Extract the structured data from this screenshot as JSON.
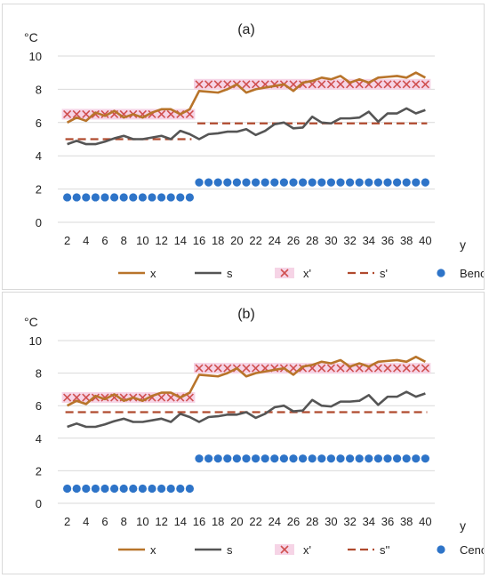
{
  "colors": {
    "x": "#b8742a",
    "s": "#555555",
    "x_prime": "#d05050",
    "x_prime_band": "#f6d4e6",
    "s_prime": "#b04a2e",
    "dots": "#2e74c8",
    "grid": "#d9d9d9",
    "text": "#222222"
  },
  "chart_data": [
    {
      "type": "line",
      "title": "(a)",
      "ylabel": "°C",
      "xlabel": "y",
      "ylim": [
        0,
        10
      ],
      "yticks": [
        0,
        2,
        4,
        6,
        8,
        10
      ],
      "xlim": [
        1,
        41
      ],
      "xticks": [
        2,
        4,
        6,
        8,
        10,
        12,
        14,
        16,
        18,
        20,
        22,
        24,
        26,
        28,
        30,
        32,
        34,
        36,
        38,
        40
      ],
      "grid": true,
      "legend_position": "bottom",
      "legend": [
        "x",
        "s",
        "x'",
        "s'",
        "Benova"
      ],
      "series": [
        {
          "name": "x",
          "x": [
            2,
            3,
            4,
            5,
            6,
            7,
            8,
            9,
            10,
            11,
            12,
            13,
            14,
            15,
            16,
            17,
            18,
            19,
            20,
            21,
            22,
            23,
            24,
            25,
            26,
            27,
            28,
            29,
            30,
            31,
            32,
            33,
            34,
            35,
            36,
            37,
            38,
            39,
            40
          ],
          "values": [
            6.0,
            6.3,
            6.1,
            6.6,
            6.4,
            6.7,
            6.3,
            6.5,
            6.3,
            6.6,
            6.8,
            6.8,
            6.5,
            6.8,
            7.9,
            7.85,
            7.8,
            8.0,
            8.3,
            7.8,
            8.0,
            8.1,
            8.2,
            8.3,
            7.9,
            8.4,
            8.5,
            8.7,
            8.6,
            8.8,
            8.4,
            8.6,
            8.4,
            8.7,
            8.75,
            8.8,
            8.7,
            9.0,
            8.7
          ]
        },
        {
          "name": "s",
          "x": [
            2,
            3,
            4,
            5,
            6,
            7,
            8,
            9,
            10,
            11,
            12,
            13,
            14,
            15,
            16,
            17,
            18,
            19,
            20,
            21,
            22,
            23,
            24,
            25,
            26,
            27,
            28,
            29,
            30,
            31,
            32,
            33,
            34,
            35,
            36,
            37,
            38,
            39,
            40
          ],
          "values": [
            4.7,
            4.9,
            4.7,
            4.7,
            4.85,
            5.05,
            5.2,
            5.0,
            5.0,
            5.1,
            5.2,
            5.0,
            5.5,
            5.3,
            5.0,
            5.3,
            5.35,
            5.45,
            5.45,
            5.6,
            5.25,
            5.5,
            5.9,
            6.0,
            5.65,
            5.7,
            6.35,
            6.0,
            5.95,
            6.25,
            6.25,
            6.3,
            6.65,
            6.05,
            6.55,
            6.55,
            6.85,
            6.55,
            6.75
          ]
        },
        {
          "name": "x'",
          "segments": [
            {
              "x_from": 2,
              "x_to": 15,
              "value": 6.5
            },
            {
              "x_from": 16,
              "x_to": 40,
              "value": 8.3
            }
          ]
        },
        {
          "name": "s'",
          "segments": [
            {
              "x_from": 2,
              "x_to": 15,
              "value": 5.0
            },
            {
              "x_from": 16,
              "x_to": 40,
              "value": 5.95
            }
          ]
        },
        {
          "name": "Benova",
          "segments": [
            {
              "x_from": 2,
              "x_to": 15,
              "value": 1.5
            },
            {
              "x_from": 16,
              "x_to": 40,
              "value": 2.4
            }
          ]
        }
      ]
    },
    {
      "type": "line",
      "title": "(b)",
      "ylabel": "°C",
      "xlabel": "y",
      "ylim": [
        0,
        10
      ],
      "yticks": [
        0,
        2,
        4,
        6,
        8,
        10
      ],
      "xlim": [
        1,
        41
      ],
      "xticks": [
        2,
        4,
        6,
        8,
        10,
        12,
        14,
        16,
        18,
        20,
        22,
        24,
        26,
        28,
        30,
        32,
        34,
        36,
        38,
        40
      ],
      "grid": true,
      "legend_position": "bottom",
      "legend": [
        "x",
        "s",
        "x'",
        "s''",
        "Cenova"
      ],
      "series": [
        {
          "name": "x",
          "x": [
            2,
            3,
            4,
            5,
            6,
            7,
            8,
            9,
            10,
            11,
            12,
            13,
            14,
            15,
            16,
            17,
            18,
            19,
            20,
            21,
            22,
            23,
            24,
            25,
            26,
            27,
            28,
            29,
            30,
            31,
            32,
            33,
            34,
            35,
            36,
            37,
            38,
            39,
            40
          ],
          "values": [
            6.0,
            6.3,
            6.1,
            6.6,
            6.4,
            6.7,
            6.3,
            6.5,
            6.3,
            6.6,
            6.8,
            6.8,
            6.5,
            6.8,
            7.9,
            7.85,
            7.8,
            8.0,
            8.3,
            7.8,
            8.0,
            8.1,
            8.2,
            8.3,
            7.9,
            8.4,
            8.5,
            8.7,
            8.6,
            8.8,
            8.4,
            8.6,
            8.4,
            8.7,
            8.75,
            8.8,
            8.7,
            9.0,
            8.7
          ]
        },
        {
          "name": "s",
          "x": [
            2,
            3,
            4,
            5,
            6,
            7,
            8,
            9,
            10,
            11,
            12,
            13,
            14,
            15,
            16,
            17,
            18,
            19,
            20,
            21,
            22,
            23,
            24,
            25,
            26,
            27,
            28,
            29,
            30,
            31,
            32,
            33,
            34,
            35,
            36,
            37,
            38,
            39,
            40
          ],
          "values": [
            4.7,
            4.9,
            4.7,
            4.7,
            4.85,
            5.05,
            5.2,
            5.0,
            5.0,
            5.1,
            5.2,
            5.0,
            5.5,
            5.3,
            5.0,
            5.3,
            5.35,
            5.45,
            5.45,
            5.6,
            5.25,
            5.5,
            5.9,
            6.0,
            5.65,
            5.7,
            6.35,
            6.0,
            5.95,
            6.25,
            6.25,
            6.3,
            6.65,
            6.05,
            6.55,
            6.55,
            6.85,
            6.55,
            6.75
          ]
        },
        {
          "name": "x'",
          "segments": [
            {
              "x_from": 2,
              "x_to": 15,
              "value": 6.5
            },
            {
              "x_from": 16,
              "x_to": 40,
              "value": 8.3
            }
          ]
        },
        {
          "name": "s''",
          "segments": [
            {
              "x_from": 2,
              "x_to": 40,
              "value": 5.6
            }
          ]
        },
        {
          "name": "Cenova",
          "segments": [
            {
              "x_from": 2,
              "x_to": 15,
              "value": 0.9
            },
            {
              "x_from": 16,
              "x_to": 40,
              "value": 2.75
            }
          ]
        }
      ]
    }
  ]
}
